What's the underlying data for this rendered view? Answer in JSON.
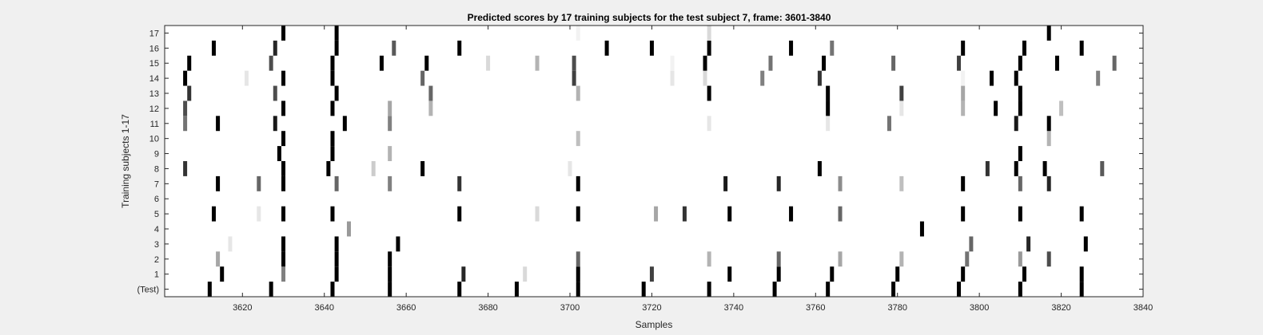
{
  "chart_data": {
    "type": "heatmap",
    "title": "Predicted scores by 17 training subjects for the test subject 7, frame: 3601-3840",
    "xlabel": "Samples",
    "ylabel": "Training subjects 1-17",
    "xlim": [
      3601,
      3840
    ],
    "x_ticks": [
      3620,
      3640,
      3660,
      3680,
      3700,
      3720,
      3740,
      3760,
      3780,
      3800,
      3820,
      3840
    ],
    "y_labels": [
      "(Test)",
      "1",
      "2",
      "3",
      "4",
      "5",
      "6",
      "7",
      "8",
      "9",
      "10",
      "11",
      "12",
      "13",
      "14",
      "15",
      "16",
      "17"
    ],
    "colormap": "gray (1 = black, 0 = white)",
    "grid": false,
    "rows": [
      {
        "label": "(Test)",
        "marks": [
          [
            3612,
            1
          ],
          [
            3627,
            1
          ],
          [
            3642,
            1
          ],
          [
            3656,
            1
          ],
          [
            3673,
            1
          ],
          [
            3687,
            1
          ],
          [
            3702,
            1
          ],
          [
            3718,
            1
          ],
          [
            3734,
            1
          ],
          [
            3750,
            1
          ],
          [
            3763,
            1
          ],
          [
            3779,
            1
          ],
          [
            3795,
            1
          ],
          [
            3810,
            1
          ],
          [
            3825,
            1
          ]
        ]
      },
      {
        "label": "1",
        "marks": [
          [
            3615,
            1
          ],
          [
            3630,
            0.5
          ],
          [
            3643,
            1
          ],
          [
            3656,
            1
          ],
          [
            3674,
            0.85
          ],
          [
            3689,
            0.15
          ],
          [
            3702,
            1
          ],
          [
            3720,
            0.75
          ],
          [
            3739,
            1
          ],
          [
            3751,
            1
          ],
          [
            3764,
            1
          ],
          [
            3780,
            1
          ],
          [
            3796,
            1
          ],
          [
            3811,
            1
          ],
          [
            3825,
            1
          ]
        ]
      },
      {
        "label": "2",
        "marks": [
          [
            3614,
            0.35
          ],
          [
            3630,
            1
          ],
          [
            3643,
            1
          ],
          [
            3656,
            1
          ],
          [
            3702,
            0.6
          ],
          [
            3734,
            0.3
          ],
          [
            3751,
            0.6
          ],
          [
            3766,
            0.35
          ],
          [
            3781,
            0.3
          ],
          [
            3797,
            0.55
          ],
          [
            3810,
            0.4
          ],
          [
            3817,
            0.7
          ]
        ]
      },
      {
        "label": "3",
        "marks": [
          [
            3617,
            0.1
          ],
          [
            3630,
            1
          ],
          [
            3643,
            1
          ],
          [
            3658,
            1
          ],
          [
            3798,
            0.6
          ],
          [
            3812,
            0.85
          ],
          [
            3826,
            1
          ]
        ]
      },
      {
        "label": "4",
        "marks": [
          [
            3646,
            0.4
          ],
          [
            3786,
            1
          ]
        ]
      },
      {
        "label": "5",
        "marks": [
          [
            3613,
            1
          ],
          [
            3624,
            0.1
          ],
          [
            3630,
            1
          ],
          [
            3642,
            1
          ],
          [
            3673,
            1
          ],
          [
            3692,
            0.15
          ],
          [
            3702,
            1
          ],
          [
            3721,
            0.35
          ],
          [
            3728,
            0.8
          ],
          [
            3739,
            1
          ],
          [
            3754,
            1
          ],
          [
            3766,
            0.6
          ],
          [
            3796,
            1
          ],
          [
            3810,
            1
          ],
          [
            3825,
            1
          ]
        ]
      },
      {
        "label": "6",
        "marks": []
      },
      {
        "label": "7",
        "marks": [
          [
            3614,
            1
          ],
          [
            3624,
            0.6
          ],
          [
            3630,
            1
          ],
          [
            3643,
            0.6
          ],
          [
            3656,
            0.5
          ],
          [
            3673,
            0.8
          ],
          [
            3702,
            1
          ],
          [
            3738,
            0.9
          ],
          [
            3751,
            0.85
          ],
          [
            3766,
            0.45
          ],
          [
            3781,
            0.25
          ],
          [
            3796,
            1
          ],
          [
            3810,
            0.6
          ],
          [
            3817,
            0.85
          ]
        ]
      },
      {
        "label": "8",
        "marks": [
          [
            3606,
            0.8
          ],
          [
            3630,
            1
          ],
          [
            3641,
            1
          ],
          [
            3652,
            0.2
          ],
          [
            3664,
            1
          ],
          [
            3700,
            0.1
          ],
          [
            3761,
            1
          ],
          [
            3802,
            0.8
          ],
          [
            3809,
            1
          ],
          [
            3816,
            1
          ],
          [
            3830,
            0.65
          ]
        ]
      },
      {
        "label": "9",
        "marks": [
          [
            3629,
            1
          ],
          [
            3642,
            1
          ],
          [
            3656,
            0.3
          ],
          [
            3810,
            1
          ]
        ]
      },
      {
        "label": "10",
        "marks": [
          [
            3630,
            1
          ],
          [
            3642,
            1
          ],
          [
            3702,
            0.25
          ],
          [
            3817,
            0.3
          ]
        ]
      },
      {
        "label": "11",
        "marks": [
          [
            3606,
            0.55
          ],
          [
            3614,
            1
          ],
          [
            3628,
            0.9
          ],
          [
            3645,
            1
          ],
          [
            3656,
            0.5
          ],
          [
            3734,
            0.1
          ],
          [
            3763,
            0.1
          ],
          [
            3778,
            0.55
          ],
          [
            3809,
            0.9
          ],
          [
            3817,
            1
          ]
        ]
      },
      {
        "label": "12",
        "marks": [
          [
            3606,
            0.7
          ],
          [
            3630,
            1
          ],
          [
            3642,
            1
          ],
          [
            3656,
            0.35
          ],
          [
            3666,
            0.3
          ],
          [
            3763,
            1
          ],
          [
            3781,
            0.1
          ],
          [
            3796,
            0.3
          ],
          [
            3804,
            1
          ],
          [
            3810,
            1
          ],
          [
            3820,
            0.25
          ]
        ]
      },
      {
        "label": "13",
        "marks": [
          [
            3607,
            0.8
          ],
          [
            3628,
            0.7
          ],
          [
            3643,
            1
          ],
          [
            3666,
            0.6
          ],
          [
            3702,
            0.3
          ],
          [
            3734,
            1
          ],
          [
            3763,
            1
          ],
          [
            3781,
            0.75
          ],
          [
            3796,
            0.35
          ],
          [
            3810,
            1
          ]
        ]
      },
      {
        "label": "14",
        "marks": [
          [
            3606,
            1
          ],
          [
            3621,
            0.1
          ],
          [
            3630,
            1
          ],
          [
            3642,
            1
          ],
          [
            3664,
            0.6
          ],
          [
            3701,
            0.75
          ],
          [
            3725,
            0.1
          ],
          [
            3733,
            0.15
          ],
          [
            3747,
            0.5
          ],
          [
            3761,
            0.8
          ],
          [
            3796,
            0.05
          ],
          [
            3803,
            1
          ],
          [
            3809,
            1
          ],
          [
            3829,
            0.5
          ]
        ]
      },
      {
        "label": "15",
        "marks": [
          [
            3607,
            1
          ],
          [
            3627,
            0.7
          ],
          [
            3642,
            1
          ],
          [
            3654,
            1
          ],
          [
            3665,
            1
          ],
          [
            3680,
            0.15
          ],
          [
            3692,
            0.3
          ],
          [
            3701,
            0.7
          ],
          [
            3725,
            0.05
          ],
          [
            3733,
            1
          ],
          [
            3749,
            0.55
          ],
          [
            3762,
            1
          ],
          [
            3779,
            0.6
          ],
          [
            3795,
            0.75
          ],
          [
            3810,
            1
          ],
          [
            3819,
            1
          ],
          [
            3833,
            0.6
          ]
        ]
      },
      {
        "label": "16",
        "marks": [
          [
            3613,
            1
          ],
          [
            3628,
            0.85
          ],
          [
            3643,
            1
          ],
          [
            3657,
            0.65
          ],
          [
            3673,
            1
          ],
          [
            3709,
            1
          ],
          [
            3720,
            1
          ],
          [
            3734,
            1
          ],
          [
            3754,
            1
          ],
          [
            3764,
            0.55
          ],
          [
            3796,
            1
          ],
          [
            3811,
            1
          ],
          [
            3825,
            1
          ]
        ]
      },
      {
        "label": "17",
        "marks": [
          [
            3630,
            1
          ],
          [
            3643,
            1
          ],
          [
            3702,
            0.05
          ],
          [
            3734,
            0.15
          ],
          [
            3817,
            1
          ]
        ]
      }
    ]
  }
}
